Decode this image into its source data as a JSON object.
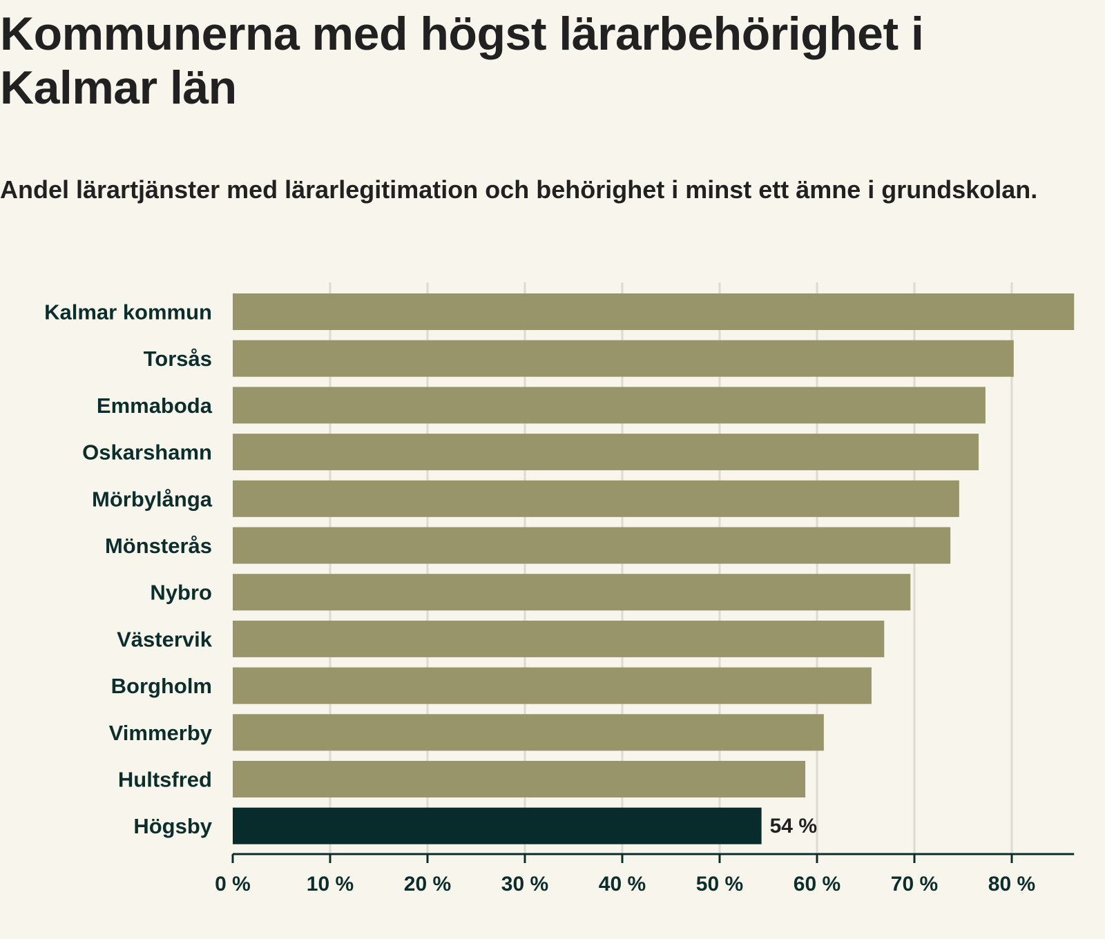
{
  "title": "Kommunerna med högst lärarbehörighet i Kalmar län",
  "subtitle": "Andel lärartjänster med lärarlegitimation och behörighet i minst ett ämne i grundskolan.",
  "colors": {
    "background": "#f8f6ec",
    "bar": "#99956b",
    "highlight": "#072c2b",
    "grid": "#dcdad1",
    "axis": "#0b2e2c",
    "label": "#0b2e2c",
    "text": "#212121"
  },
  "chart_data": {
    "type": "bar",
    "orientation": "horizontal",
    "categories": [
      "Kalmar kommun",
      "Torsås",
      "Emmaboda",
      "Oskarshamn",
      "Mörbylånga",
      "Mönsterås",
      "Nybro",
      "Västervik",
      "Borgholm",
      "Vimmerby",
      "Hultsfred",
      "Högsby"
    ],
    "values": [
      86.4,
      80.2,
      77.3,
      76.6,
      74.6,
      73.7,
      69.6,
      66.9,
      65.6,
      60.7,
      58.8,
      54.3
    ],
    "highlight": "Högsby",
    "data_labels": [
      {
        "category": "Högsby",
        "text": "54 %"
      }
    ],
    "xlim": [
      0,
      86.4
    ],
    "xticks": [
      0,
      10,
      20,
      30,
      40,
      50,
      60,
      70,
      80
    ],
    "xtick_labels": [
      "0 %",
      "10 %",
      "20 %",
      "30 %",
      "40 %",
      "50 %",
      "60 %",
      "70 %",
      "80 %"
    ],
    "grid": true,
    "legend": false
  }
}
